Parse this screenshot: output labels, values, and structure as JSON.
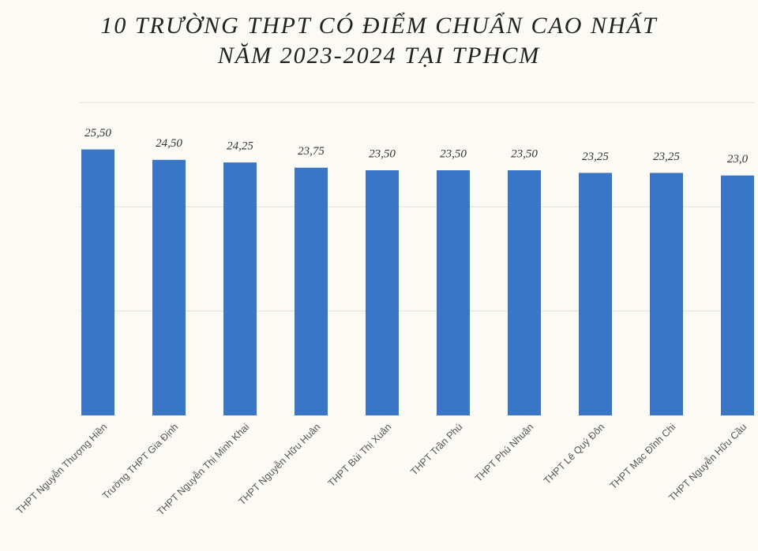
{
  "chart_data": {
    "type": "bar",
    "title": "10 TRƯỜNG THPT CÓ ĐIỂM CHUẨN CAO NHẤT NĂM 2023-2024 TẠI TPHCM",
    "categories": [
      "THPT Nguyễn Thượng Hiền",
      "Trường THPT Gia Định",
      "THPT Nguyễn Thị Minh Khai",
      "THPT Nguyễn Hữu Huân",
      "THPT Bùi Thị Xuân",
      "THPT Trần Phú",
      "THPT Phú Nhuận",
      "THPT Lê Quý Đôn",
      "THPT Mạc Đĩnh Chi",
      "THPT Nguyễn Hữu Cầu"
    ],
    "values": [
      25.5,
      24.5,
      24.25,
      23.75,
      23.5,
      23.5,
      23.5,
      23.25,
      23.25,
      23
    ],
    "value_labels": [
      "25,50",
      "24,50",
      "24,25",
      "23,75",
      "23,50",
      "23,50",
      "23,50",
      "23,25",
      "23,25",
      "23,0"
    ],
    "color": "#3a76c7",
    "ylim": [
      0,
      30
    ],
    "yticks": [
      10,
      20,
      30
    ],
    "tick_labels": false,
    "grid": true
  }
}
